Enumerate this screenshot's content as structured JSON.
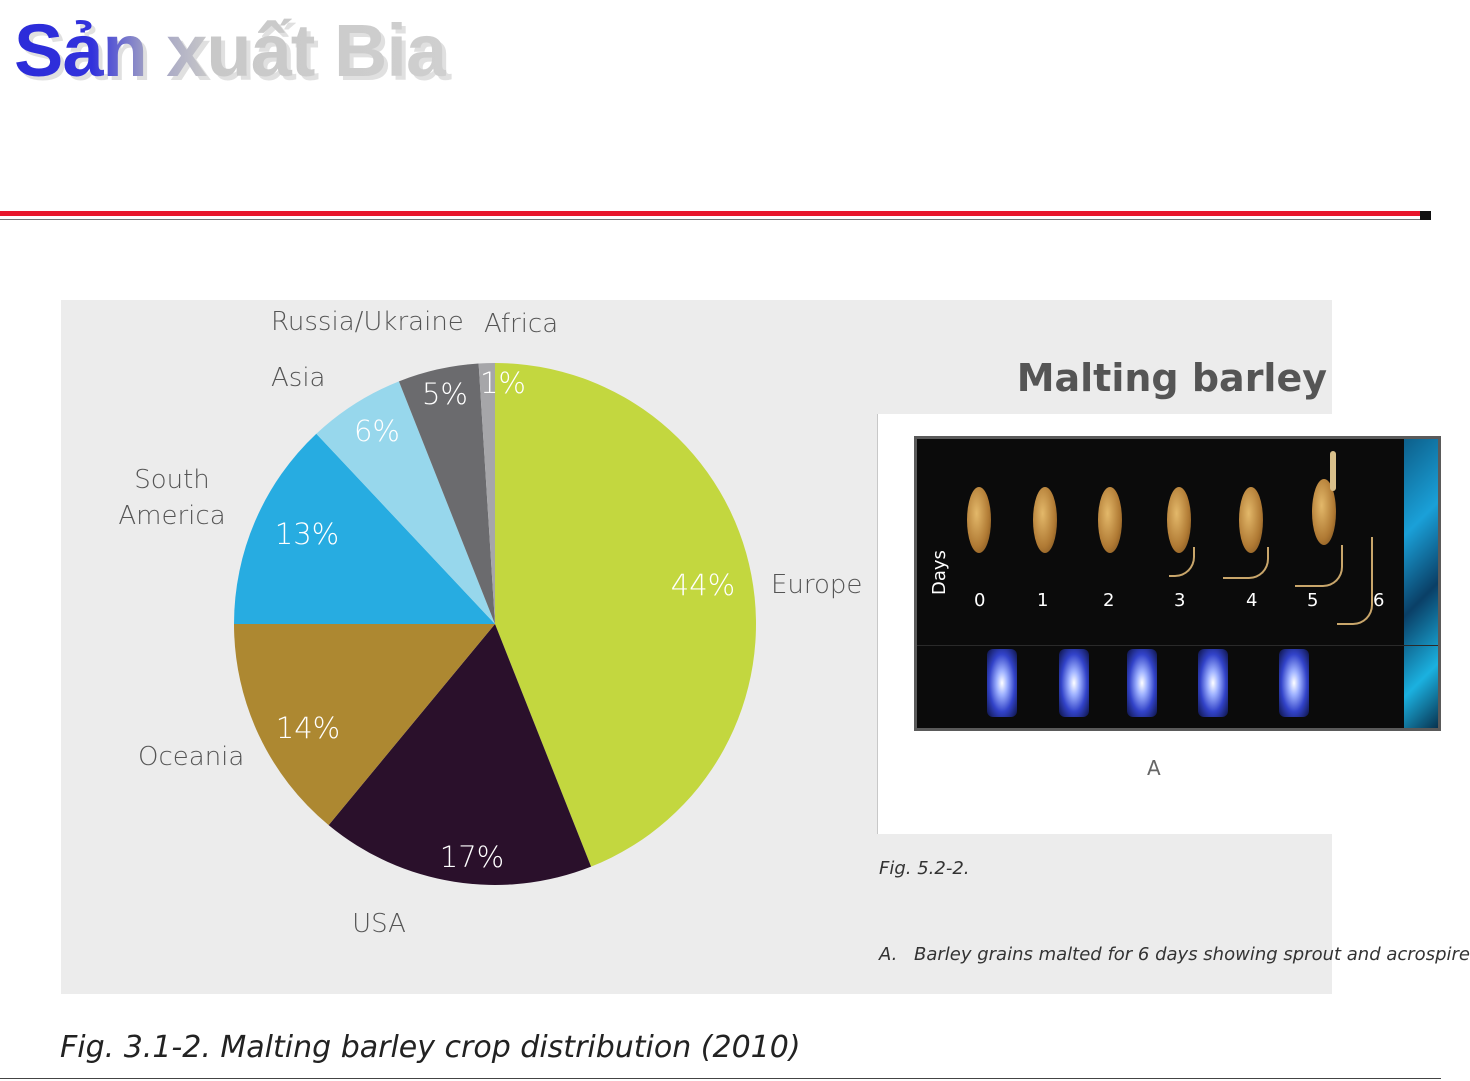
{
  "slide": {
    "title": "Sản xuất Bia"
  },
  "chart_data": {
    "type": "pie",
    "title": "",
    "slices": [
      {
        "name": "Europe",
        "value": 44,
        "label": "44%",
        "color": "#c3d73f"
      },
      {
        "name": "USA",
        "value": 17,
        "label": "17%",
        "color": "#2a102b"
      },
      {
        "name": "Oceania",
        "value": 14,
        "label": "14%",
        "color": "#ad8831"
      },
      {
        "name": "South America",
        "value": 13,
        "label": "13%",
        "color": "#27ace1"
      },
      {
        "name": "Asia",
        "value": 6,
        "label": "6%",
        "color": "#97d7ec"
      },
      {
        "name": "Russia/Ukraine",
        "value": 5,
        "label": "5%",
        "color": "#6b6b6e"
      },
      {
        "name": "Africa",
        "value": 1,
        "label": "1%",
        "color": "#a6a6a9"
      }
    ],
    "caption": "Fig. 3.1-2. Malting barley crop distribution (2010)"
  },
  "region_labels": {
    "russia_ukraine": "Russia/Ukraine",
    "africa": "Africa",
    "asia": "Asia",
    "south_america_1": "South",
    "south_america_2": "America",
    "europe": "Europe",
    "oceania": "Oceania",
    "usa": "USA"
  },
  "malting": {
    "title": "Malting barley",
    "days_label": "Days",
    "days": [
      "0",
      "1",
      "2",
      "3",
      "4",
      "5",
      "6"
    ],
    "panel_letter": "A",
    "fig_label": "Fig. 5.2-2.",
    "desc_prefix": "A.",
    "desc_text": "Barley grains malted for 6 days showing sprout and acrospire"
  }
}
